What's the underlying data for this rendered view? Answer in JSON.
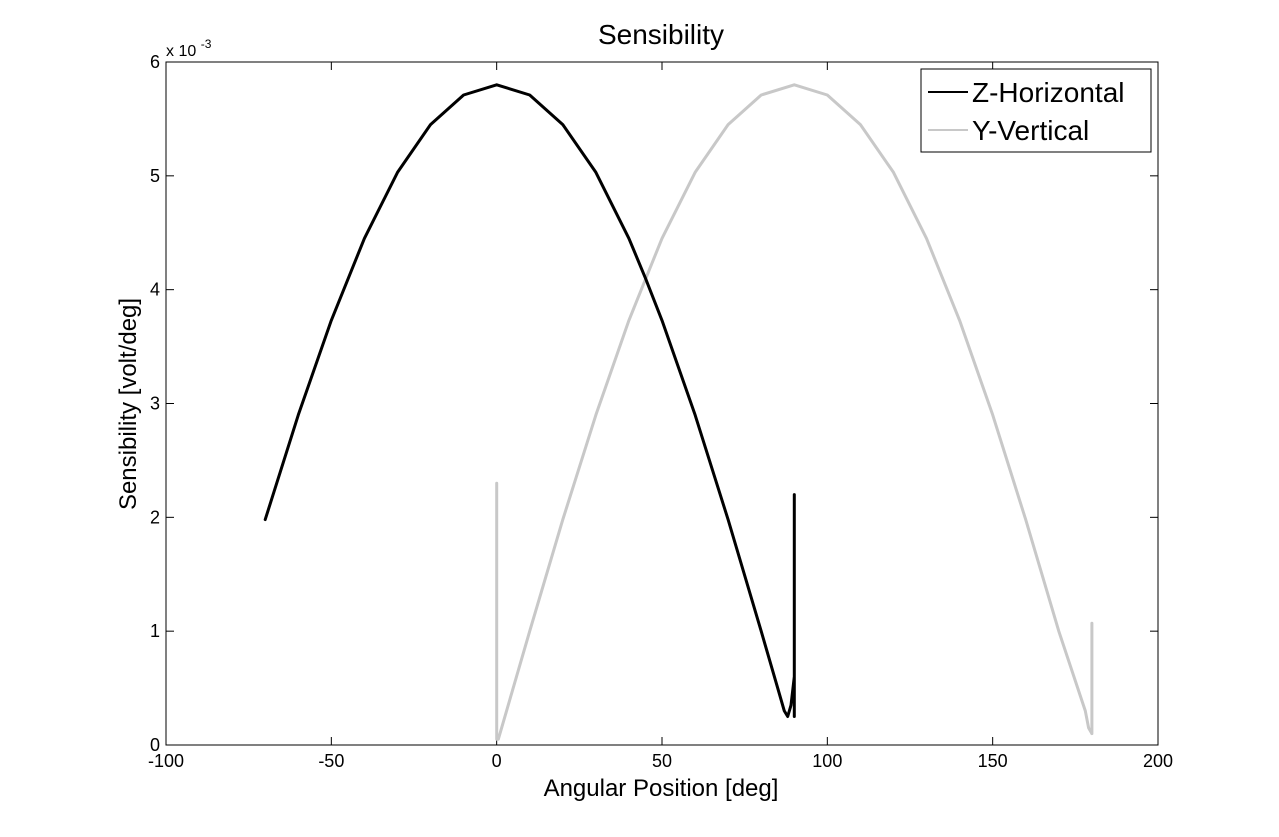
{
  "chart_data": {
    "type": "line",
    "title": "Sensibility",
    "xlabel": "Angular Position [deg]",
    "ylabel": "Sensibility [volt/deg]",
    "y_multiplier_label": "x 10",
    "y_multiplier_exponent": "-3",
    "xlim": [
      -100,
      200
    ],
    "ylim": [
      0,
      6
    ],
    "xticks": [
      -100,
      -50,
      0,
      50,
      100,
      150,
      200
    ],
    "yticks": [
      0,
      1,
      2,
      3,
      4,
      5,
      6
    ],
    "xtick_labels": [
      "-100",
      "-50",
      "0",
      "50",
      "100",
      "150",
      "200"
    ],
    "ytick_labels": [
      "0",
      "1",
      "2",
      "3",
      "4",
      "5",
      "6"
    ],
    "grid": false,
    "legend_position": "top-right",
    "series": [
      {
        "name": "Z-Horizontal",
        "color": "#000000",
        "x": [
          -70,
          -60,
          -50,
          -40,
          -30,
          -20,
          -10,
          0,
          10,
          20,
          30,
          40,
          45,
          50,
          60,
          70,
          80,
          85,
          87,
          88,
          89,
          90,
          90,
          90,
          90
        ],
        "y": [
          1.98,
          2.9,
          3.73,
          4.45,
          5.03,
          5.45,
          5.71,
          5.8,
          5.71,
          5.45,
          5.03,
          4.45,
          4.1,
          3.73,
          2.9,
          1.98,
          1.0,
          0.5,
          0.3,
          0.25,
          0.35,
          0.6,
          2.2,
          0.3,
          0.25
        ]
      },
      {
        "name": "Y-Vertical",
        "color": "#c8c8c8",
        "x": [
          0,
          0,
          0,
          0.5,
          10,
          20,
          30,
          40,
          50,
          60,
          70,
          80,
          90,
          100,
          110,
          120,
          130,
          140,
          150,
          160,
          170,
          178,
          179,
          180,
          180,
          180
        ],
        "y": [
          2.3,
          0.3,
          0.05,
          0.05,
          1.0,
          1.98,
          2.9,
          3.73,
          4.45,
          5.03,
          5.45,
          5.71,
          5.8,
          5.71,
          5.45,
          5.03,
          4.45,
          3.73,
          2.9,
          1.98,
          1.0,
          0.3,
          0.15,
          0.1,
          1.07,
          0.1
        ]
      }
    ]
  }
}
